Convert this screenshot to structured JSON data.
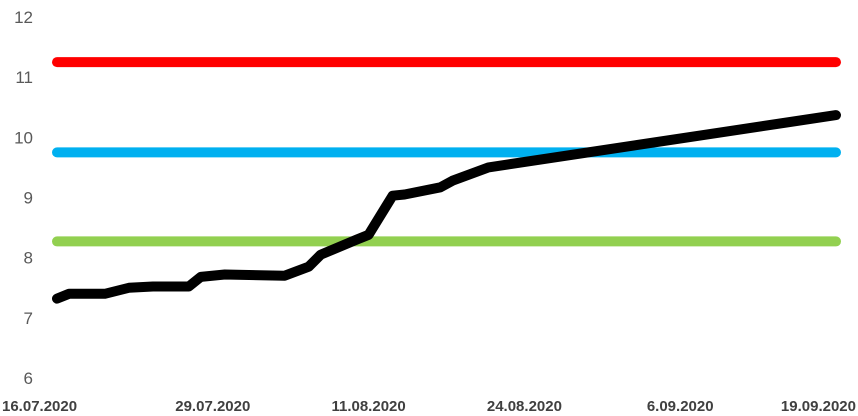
{
  "chart_data": {
    "type": "line",
    "title": "",
    "xlabel": "",
    "ylabel": "",
    "ylim": [
      6,
      12
    ],
    "yticks": [
      6,
      7,
      8,
      9,
      10,
      11,
      12
    ],
    "xticks": [
      "16.07.2020",
      "29.07.2020",
      "11.08.2020",
      "24.08.2020",
      "6.09.2020",
      "19.09.2020"
    ],
    "x_date_range": [
      "16.07.2020",
      "19.09.2020"
    ],
    "grid": false,
    "legend": "none",
    "reference_lines": [
      {
        "value": 11.25,
        "color": "#ff0000"
      },
      {
        "value": 9.75,
        "color": "#00b0f0"
      },
      {
        "value": 8.27,
        "color": "#92d050"
      }
    ],
    "series": [
      {
        "color": "#000000",
        "points": [
          {
            "x": "16.07.2020",
            "y": 7.32
          },
          {
            "x": "17.07.2020",
            "y": 7.4
          },
          {
            "x": "20.07.2020",
            "y": 7.4
          },
          {
            "x": "22.07.2020",
            "y": 7.5
          },
          {
            "x": "24.07.2020",
            "y": 7.52
          },
          {
            "x": "27.07.2020",
            "y": 7.52
          },
          {
            "x": "28.07.2020",
            "y": 7.68
          },
          {
            "x": "30.07.2020",
            "y": 7.72
          },
          {
            "x": "04.08.2020",
            "y": 7.7
          },
          {
            "x": "06.08.2020",
            "y": 7.85
          },
          {
            "x": "07.08.2020",
            "y": 8.05
          },
          {
            "x": "10.08.2020",
            "y": 8.3
          },
          {
            "x": "11.08.2020",
            "y": 8.38
          },
          {
            "x": "13.08.2020",
            "y": 9.03
          },
          {
            "x": "14.08.2020",
            "y": 9.05
          },
          {
            "x": "17.08.2020",
            "y": 9.17
          },
          {
            "x": "18.08.2020",
            "y": 9.28
          },
          {
            "x": "21.08.2020",
            "y": 9.5
          },
          {
            "x": "19.09.2020",
            "y": 10.37
          }
        ]
      }
    ]
  }
}
